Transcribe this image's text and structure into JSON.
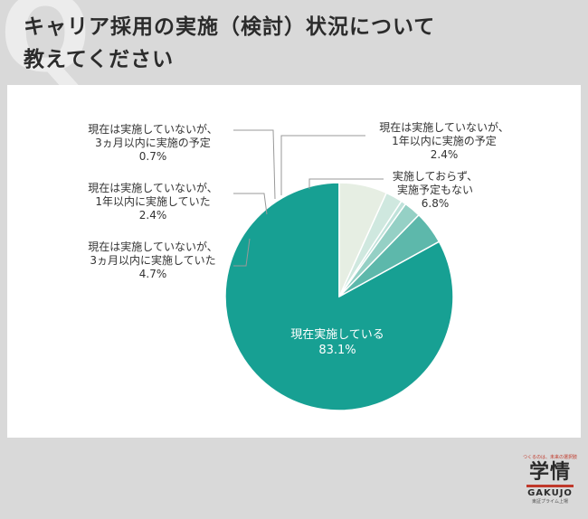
{
  "header": {
    "title_line1": "キャリア採用の実施（検討）状況について",
    "title_line2": "教えてください"
  },
  "chart_data": {
    "type": "pie",
    "start_angle_deg": 0,
    "direction": "counterclockwise",
    "slices": [
      {
        "label": "現在実施している",
        "value": 83.1,
        "value_label": "83.1%",
        "color": "#17a093"
      },
      {
        "label_lines": [
          "現在は実施していないが、",
          "3ヵ月以内に実施していた"
        ],
        "value": 4.7,
        "value_label": "4.7%",
        "color": "#5db8ab"
      },
      {
        "label_lines": [
          "現在は実施していないが、",
          "1年以内に実施していた"
        ],
        "value": 2.4,
        "value_label": "2.4%",
        "color": "#95d0c5"
      },
      {
        "label_lines": [
          "現在は実施していないが、",
          "3ヵ月以内に実施の予定"
        ],
        "value": 0.7,
        "value_label": "0.7%",
        "color": "#bfe2da"
      },
      {
        "label_lines": [
          "現在は実施していないが、",
          "1年以内に実施の予定"
        ],
        "value": 2.4,
        "value_label": "2.4%",
        "color": "#cfe8df"
      },
      {
        "label_lines": [
          "実施しておらず、",
          "実施予定もない"
        ],
        "value": 6.8,
        "value_label": "6.8%",
        "color": "#e6eee3"
      }
    ]
  },
  "logo": {
    "tagline": "つくるのは、未来の選択肢",
    "kanji": "学情",
    "english": "GAKUJO",
    "sub": "東証プライム上場"
  }
}
